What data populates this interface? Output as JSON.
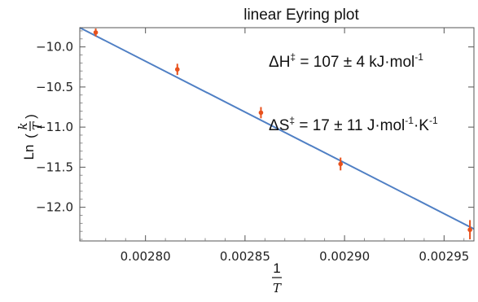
{
  "chart_data": {
    "type": "scatter",
    "title": "linear Eyring plot",
    "xlabel": {
      "numerator": "1",
      "denominator": "T"
    },
    "ylabel": {
      "prefix": "Ln",
      "numerator": "k",
      "denominator": "T"
    },
    "xlim": [
      0.002767,
      0.002965
    ],
    "ylim": [
      -12.42,
      -9.76
    ],
    "x_ticks": [
      0.0028,
      0.00285,
      0.0029,
      0.00295
    ],
    "x_tick_labels": [
      "0.00280",
      "0.00285",
      "0.00290",
      "0.00295"
    ],
    "y_ticks": [
      -10.0,
      -10.5,
      -11.0,
      -11.5,
      -12.0
    ],
    "y_tick_labels": [
      "−10.0",
      "−10.5",
      "−11.0",
      "−11.5",
      "−12.0"
    ],
    "grid": false,
    "series": [
      {
        "type": "scatter",
        "color": "#e8511c",
        "x": [
          0.002775,
          0.002816,
          0.002858,
          0.002898,
          0.002963
        ],
        "y": [
          -9.82,
          -10.28,
          -10.82,
          -11.46,
          -12.28
        ],
        "yerr": [
          0.05,
          0.07,
          0.07,
          0.08,
          0.12
        ]
      },
      {
        "type": "line",
        "color": "#4f7fc4",
        "x": [
          0.002767,
          0.002965
        ],
        "y": [
          -9.76,
          -12.27
        ]
      }
    ],
    "annotations": [
      {
        "lines": [
          {
            "text": "ΔH",
            "sup": false
          },
          {
            "text": "‡",
            "sup": true
          },
          {
            "text": " = 107 ± 4 kJ·mol",
            "sup": false
          },
          {
            "text": "-1",
            "sup": true
          }
        ]
      },
      {
        "lines": [
          {
            "text": "ΔS",
            "sup": false
          },
          {
            "text": "‡",
            "sup": true
          },
          {
            "text": " = 17 ± 11 J·mol",
            "sup": false
          },
          {
            "text": "-1",
            "sup": true
          },
          {
            "text": "·K",
            "sup": false
          },
          {
            "text": "-1",
            "sup": true
          }
        ]
      }
    ]
  }
}
